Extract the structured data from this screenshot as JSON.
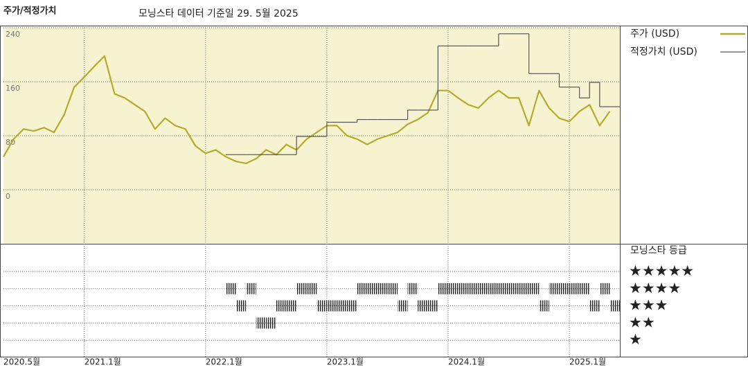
{
  "chart_data": {
    "type": "line",
    "title": "주가/적정가치",
    "subtitle": "모닝스타 데이터 기준일 29. 5월 2025",
    "x": [
      "2020-05",
      "2020-06",
      "2020-07",
      "2020-08",
      "2020-09",
      "2020-10",
      "2020-11",
      "2020-12",
      "2021-01",
      "2021-02",
      "2021-03",
      "2021-04",
      "2021-05",
      "2021-06",
      "2021-07",
      "2021-08",
      "2021-09",
      "2021-10",
      "2021-11",
      "2021-12",
      "2022-01",
      "2022-02",
      "2022-03",
      "2022-04",
      "2022-05",
      "2022-06",
      "2022-07",
      "2022-08",
      "2022-09",
      "2022-10",
      "2022-11",
      "2022-12",
      "2023-01",
      "2023-02",
      "2023-03",
      "2023-04",
      "2023-05",
      "2023-06",
      "2023-07",
      "2023-08",
      "2023-09",
      "2023-10",
      "2023-11",
      "2023-12",
      "2024-01",
      "2024-02",
      "2024-03",
      "2024-04",
      "2024-05",
      "2024-06",
      "2024-07",
      "2024-08",
      "2024-09",
      "2024-10",
      "2024-11",
      "2024-12",
      "2025-01",
      "2025-02",
      "2025-03",
      "2025-04",
      "2025-05"
    ],
    "xlim": [
      "2020-05",
      "2025-06"
    ],
    "xticks": [
      {
        "value": "2020-05",
        "label": "2020.5월"
      },
      {
        "value": "2021-01",
        "label": "2021.1월"
      },
      {
        "value": "2022-01",
        "label": "2022.1월"
      },
      {
        "value": "2023-01",
        "label": "2023.1월"
      },
      {
        "value": "2024-01",
        "label": "2024.1월"
      },
      {
        "value": "2025-01",
        "label": "2025.1월"
      }
    ],
    "ylim": [
      -80,
      240
    ],
    "yticks": [
      0,
      80,
      160,
      240
    ],
    "grid": true,
    "series": [
      {
        "name": "주가 (USD)",
        "color": "#b0ac2c",
        "values": [
          49,
          75,
          90,
          87,
          92,
          85,
          111,
          152,
          167,
          183,
          198,
          142,
          136,
          126,
          116,
          90,
          106,
          95,
          90,
          65,
          54,
          59,
          49,
          42,
          39,
          46,
          59,
          52,
          67,
          59,
          75,
          85,
          95,
          95,
          80,
          75,
          67,
          75,
          80,
          85,
          97,
          104,
          114,
          147,
          147,
          136,
          126,
          121,
          136,
          147,
          136,
          136,
          95,
          147,
          121,
          106,
          101,
          116,
          126,
          95,
          116
        ]
      },
      {
        "name": "적정가치 (USD)",
        "color": "#555555",
        "step": true,
        "values": [
          null,
          null,
          null,
          null,
          null,
          null,
          null,
          null,
          null,
          null,
          null,
          null,
          null,
          null,
          null,
          null,
          null,
          null,
          null,
          null,
          null,
          null,
          52,
          52,
          52,
          52,
          52,
          52,
          52,
          79,
          79,
          79,
          100,
          100,
          100,
          104,
          104,
          104,
          104,
          104,
          118,
          118,
          118,
          213,
          213,
          213,
          213,
          213,
          213,
          231,
          231,
          231,
          172,
          172,
          172,
          152,
          152,
          136,
          159,
          123,
          123
        ]
      }
    ],
    "rating_title": "모닝스타 등급",
    "rating_labels": [
      "★★★★★",
      "★★★★",
      "★★★",
      "★★",
      "★"
    ],
    "ratings": [
      null,
      null,
      null,
      null,
      null,
      null,
      null,
      null,
      null,
      null,
      null,
      null,
      null,
      null,
      null,
      null,
      null,
      null,
      null,
      null,
      null,
      null,
      4,
      3,
      4,
      2,
      2,
      3,
      3,
      4,
      4,
      3,
      3,
      3,
      3,
      4,
      4,
      4,
      4,
      3,
      4,
      3,
      3,
      4,
      4,
      4,
      4,
      4,
      4,
      4,
      4,
      4,
      4,
      3,
      4,
      4,
      4,
      4,
      3,
      4,
      3
    ],
    "rating_color": "#222222",
    "background": "#f7f3d0"
  }
}
